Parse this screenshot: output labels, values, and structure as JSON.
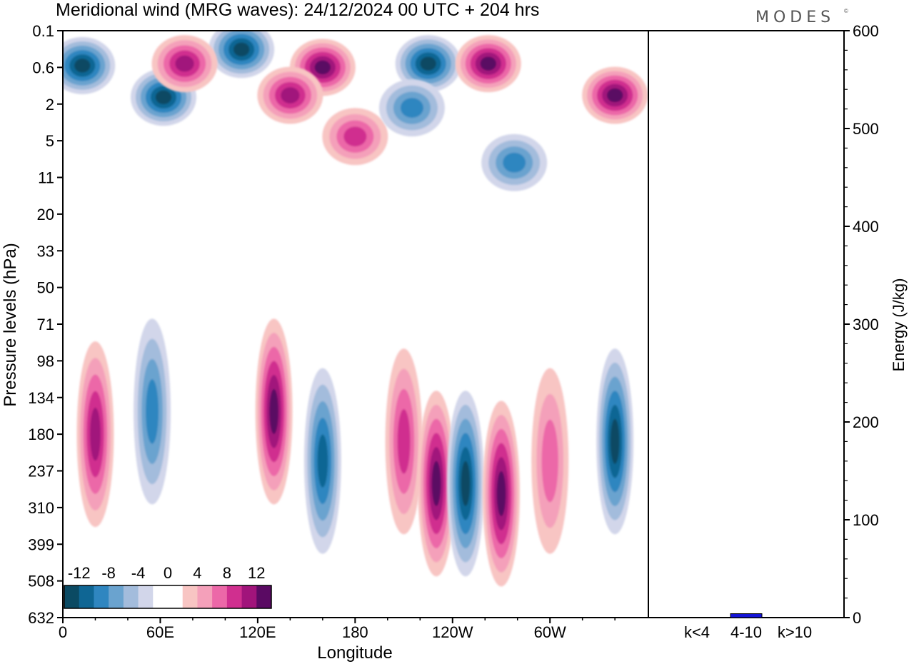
{
  "title": "Meridional wind (MRG waves):  24/12/2024  00 UTC  + 204 hrs",
  "brand": "MODES",
  "brand_mark": "©",
  "colors": {
    "neg": [
      "#0b4a63",
      "#0f6694",
      "#2f86c0",
      "#6aa3cf",
      "#a3bcdc",
      "#d2d6ea"
    ],
    "pos": [
      "#f8c5c3",
      "#f4a0ba",
      "#ec68a8",
      "#d02f8f",
      "#a1147b",
      "#5a0a63"
    ],
    "energy_bar": "#1515d8"
  },
  "chart_data": [
    {
      "type": "heatmap",
      "title": "Meridional wind (MRG waves):  24/12/2024  00 UTC  + 204 hrs",
      "xlabel": "Longitude",
      "ylabel": "Pressure levels (hPa)",
      "x_ticks": [
        "0",
        "60E",
        "120E",
        "180",
        "120W",
        "60W"
      ],
      "y_ticks": [
        "0.1",
        "0.6",
        "2",
        "5",
        "11",
        "20",
        "33",
        "50",
        "71",
        "98",
        "134",
        "180",
        "237",
        "310",
        "399",
        "508",
        "632"
      ],
      "colorbar": {
        "labels": [
          "-12",
          "-8",
          "-4",
          "0",
          "4",
          "8",
          "12"
        ],
        "levels": [
          -14,
          -12,
          -10,
          -8,
          -6,
          -4,
          -2,
          2,
          4,
          6,
          8,
          10,
          12
        ]
      },
      "features": [
        {
          "lon": 12,
          "level": 0.55,
          "value": -13
        },
        {
          "lon": 62,
          "level": 1.6,
          "value": -13
        },
        {
          "lon": 110,
          "level": 0.25,
          "value": -14
        },
        {
          "lon": 75,
          "level": 0.5,
          "value": 10
        },
        {
          "lon": 160,
          "level": 0.6,
          "value": 14
        },
        {
          "lon": 140,
          "level": 1.5,
          "value": 9
        },
        {
          "lon": 180,
          "level": 4.5,
          "value": 8
        },
        {
          "lon": 225,
          "level": 0.5,
          "value": -12
        },
        {
          "lon": 262,
          "level": 0.5,
          "value": 13
        },
        {
          "lon": 278,
          "level": 8,
          "value": -8
        },
        {
          "lon": 340,
          "level": 1.5,
          "value": 11
        },
        {
          "lon": 215,
          "level": 2.2,
          "value": -7
        },
        {
          "lon": 20,
          "level": 180,
          "value": 10
        },
        {
          "lon": 55,
          "level": 150,
          "value": -7
        },
        {
          "lon": 130,
          "level": 150,
          "value": 11
        },
        {
          "lon": 160,
          "level": 220,
          "value": -9
        },
        {
          "lon": 210,
          "level": 190,
          "value": 8
        },
        {
          "lon": 230,
          "level": 260,
          "value": 14
        },
        {
          "lon": 248,
          "level": 260,
          "value": -15
        },
        {
          "lon": 270,
          "level": 280,
          "value": 13
        },
        {
          "lon": 300,
          "level": 220,
          "value": 6
        },
        {
          "lon": 340,
          "level": 190,
          "value": -12
        }
      ]
    },
    {
      "type": "bar",
      "categories": [
        "k<4",
        "4-10",
        "k>10"
      ],
      "values": [
        0,
        4,
        0
      ],
      "ylabel": "Energy (J/kg)",
      "ylim": [
        0,
        600
      ],
      "y_ticks": [
        "0",
        "100",
        "200",
        "300",
        "400",
        "500",
        "600"
      ]
    }
  ]
}
